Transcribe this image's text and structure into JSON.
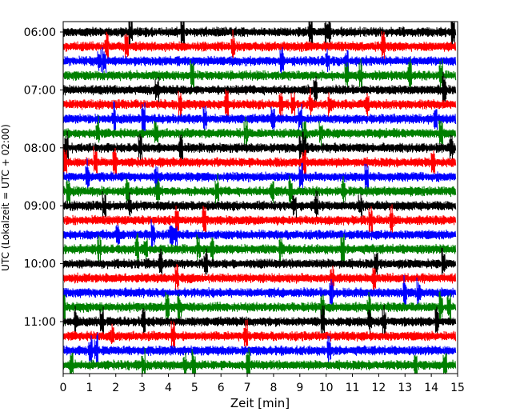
{
  "chart_data": {
    "type": "line",
    "chart_kind": "helicorder / seismogram drum plot",
    "xlabel": "Zeit  [min]",
    "ylabel": "UTC (Lokalzeit = UTC + 02:00)",
    "xlim": [
      0,
      15
    ],
    "x_ticks": [
      0,
      1,
      2,
      3,
      4,
      5,
      6,
      7,
      8,
      9,
      10,
      11,
      12,
      13,
      14,
      15
    ],
    "x_tick_labels": [
      "0",
      "1",
      "2",
      "3",
      "4",
      "5",
      "6",
      "7",
      "8",
      "9",
      "10",
      "11",
      "12",
      "13",
      "14",
      "15"
    ],
    "y_tick_labels": [
      "06:00",
      "07:00",
      "08:00",
      "09:00",
      "10:00",
      "11:00"
    ],
    "y_tick_rows": [
      0,
      4,
      8,
      12,
      16,
      20
    ],
    "rows_per_hour": 4,
    "minutes_per_row": 15,
    "row_count": 24,
    "color_cycle": [
      "#000000",
      "#ff0000",
      "#0000ff",
      "#008000"
    ],
    "grid": false,
    "legend": "none"
  }
}
